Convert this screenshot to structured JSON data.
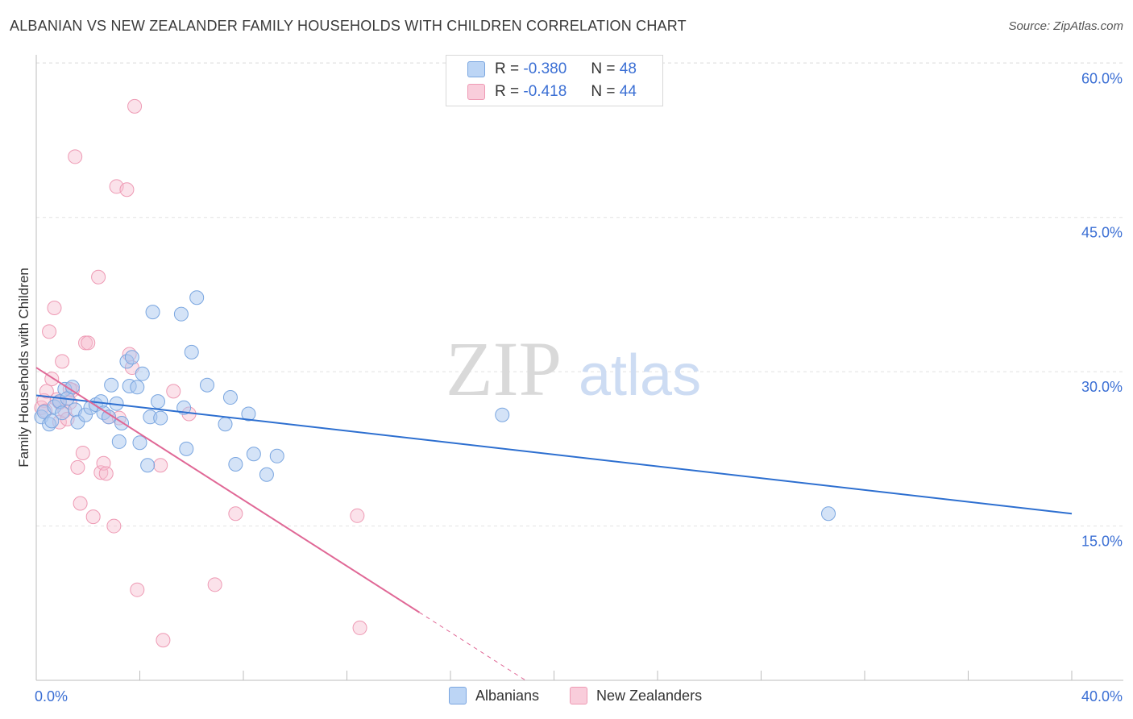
{
  "header": {
    "title": "ALBANIAN VS NEW ZEALANDER FAMILY HOUSEHOLDS WITH CHILDREN CORRELATION CHART",
    "source": "Source: ZipAtlas.com"
  },
  "watermark": {
    "zip": "ZIP",
    "atlas": "atlas"
  },
  "legend": {
    "albanians": {
      "r_label": "R =",
      "r_value": "-0.380",
      "n_label": "N =",
      "n_value": "48"
    },
    "new_zealanders": {
      "r_label": "R =",
      "r_value": "-0.418",
      "n_label": "N =",
      "n_value": "44"
    }
  },
  "bottom_legend": {
    "albanians": "Albanians",
    "new_zealanders": "New Zealanders"
  },
  "colors": {
    "albanians_fill": "#a9c8f0",
    "albanians_stroke": "#7aa6e0",
    "albanians_line": "#2d6fd0",
    "nz_fill": "#f6bfd0",
    "nz_stroke": "#ee9ab4",
    "nz_line": "#e06896",
    "tick_label": "#3b6fd4",
    "grid": "#e2e2e2"
  },
  "chart_data": {
    "type": "scatter",
    "title": "ALBANIAN VS NEW ZEALANDER FAMILY HOUSEHOLDS WITH CHILDREN CORRELATION CHART",
    "xlabel": "",
    "ylabel": "Family Households with Children",
    "xlim": [
      0,
      40
    ],
    "ylim": [
      0,
      63
    ],
    "x_tick_labels": [
      "0.0%",
      "40.0%"
    ],
    "y_ticks": [
      15,
      30,
      45,
      60
    ],
    "y_tick_labels": [
      "15.0%",
      "30.0%",
      "45.0%",
      "60.0%"
    ],
    "grid": true,
    "series": [
      {
        "name": "Albanians",
        "R": -0.38,
        "N": 48,
        "trend": {
          "x0": 0,
          "y0": 27.7,
          "x1": 40,
          "y1": 16.2
        },
        "points": [
          [
            0.2,
            25.6
          ],
          [
            0.3,
            26.1
          ],
          [
            0.5,
            24.9
          ],
          [
            0.7,
            26.6
          ],
          [
            0.9,
            27.1
          ],
          [
            1.1,
            28.3
          ],
          [
            1.2,
            27.4
          ],
          [
            1.4,
            28.5
          ],
          [
            1.5,
            26.3
          ],
          [
            1.6,
            25.1
          ],
          [
            1.9,
            25.8
          ],
          [
            2.1,
            26.5
          ],
          [
            2.3,
            26.8
          ],
          [
            2.5,
            27.1
          ],
          [
            2.6,
            26.0
          ],
          [
            2.8,
            25.6
          ],
          [
            2.9,
            28.7
          ],
          [
            3.1,
            26.9
          ],
          [
            3.2,
            23.2
          ],
          [
            3.3,
            25.0
          ],
          [
            3.5,
            31.0
          ],
          [
            3.6,
            28.6
          ],
          [
            3.7,
            31.4
          ],
          [
            3.9,
            28.5
          ],
          [
            4.0,
            23.1
          ],
          [
            4.1,
            29.8
          ],
          [
            4.3,
            20.9
          ],
          [
            4.4,
            25.6
          ],
          [
            4.5,
            35.8
          ],
          [
            4.7,
            27.1
          ],
          [
            4.8,
            25.5
          ],
          [
            5.6,
            35.6
          ],
          [
            5.7,
            26.5
          ],
          [
            5.8,
            22.5
          ],
          [
            6.0,
            31.9
          ],
          [
            6.2,
            37.2
          ],
          [
            6.6,
            28.7
          ],
          [
            7.3,
            24.9
          ],
          [
            7.5,
            27.5
          ],
          [
            7.7,
            21.0
          ],
          [
            8.2,
            25.9
          ],
          [
            8.4,
            22.0
          ],
          [
            8.9,
            20.0
          ],
          [
            9.3,
            21.8
          ],
          [
            18.0,
            25.8
          ],
          [
            30.6,
            16.2
          ],
          [
            0.6,
            25.2
          ],
          [
            1.0,
            26.0
          ]
        ]
      },
      {
        "name": "New Zealanders",
        "R": -0.418,
        "N": 44,
        "trend": {
          "x0": 0,
          "y0": 30.4,
          "x1": 14.8,
          "y1": 6.6,
          "dash_to_x": 18.9,
          "dash_to_y": 0.0
        },
        "points": [
          [
            0.2,
            26.5
          ],
          [
            0.3,
            27.2
          ],
          [
            0.4,
            28.1
          ],
          [
            0.5,
            33.9
          ],
          [
            0.6,
            29.3
          ],
          [
            0.7,
            36.2
          ],
          [
            0.8,
            27.3
          ],
          [
            0.9,
            25.1
          ],
          [
            1.0,
            31.0
          ],
          [
            1.1,
            26.2
          ],
          [
            1.2,
            25.4
          ],
          [
            1.3,
            27.0
          ],
          [
            1.4,
            28.2
          ],
          [
            1.5,
            50.9
          ],
          [
            1.6,
            20.7
          ],
          [
            1.7,
            17.2
          ],
          [
            1.8,
            22.1
          ],
          [
            1.9,
            32.8
          ],
          [
            2.0,
            32.8
          ],
          [
            2.2,
            15.9
          ],
          [
            2.4,
            39.2
          ],
          [
            2.5,
            20.2
          ],
          [
            2.6,
            21.1
          ],
          [
            2.7,
            20.1
          ],
          [
            2.8,
            25.6
          ],
          [
            3.0,
            15.0
          ],
          [
            3.1,
            48.0
          ],
          [
            3.2,
            25.5
          ],
          [
            3.5,
            47.7
          ],
          [
            3.6,
            31.7
          ],
          [
            3.7,
            30.4
          ],
          [
            3.8,
            55.8
          ],
          [
            3.9,
            8.8
          ],
          [
            4.8,
            20.9
          ],
          [
            4.9,
            3.9
          ],
          [
            5.3,
            28.1
          ],
          [
            5.9,
            25.9
          ],
          [
            6.9,
            9.3
          ],
          [
            7.7,
            16.2
          ],
          [
            12.4,
            16.0
          ],
          [
            12.5,
            5.1
          ],
          [
            0.35,
            26.2
          ],
          [
            0.9,
            27.0
          ],
          [
            1.3,
            28.3
          ]
        ]
      }
    ]
  }
}
